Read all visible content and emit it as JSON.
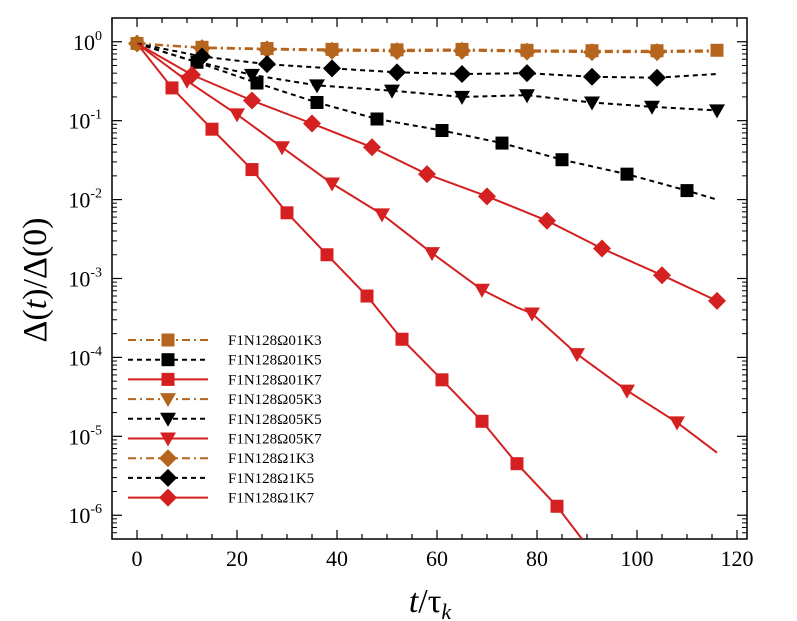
{
  "chart_data": {
    "type": "line",
    "yscale": "log",
    "xlabel": {
      "main": "t",
      "sep": "/",
      "tau": "τ",
      "sub": "k"
    },
    "ylabel": {
      "d1": "Δ(",
      "t": "t",
      "mid": ")/Δ(0)"
    },
    "xlim": [
      -5,
      122
    ],
    "ylim": [
      5e-07,
      2
    ],
    "xticks": [
      0,
      20,
      40,
      60,
      80,
      100,
      120
    ],
    "xtick_labels": [
      "0",
      "20",
      "40",
      "60",
      "80",
      "100",
      "120"
    ],
    "ytick_labels": [
      {
        "base": "10",
        "exp": "0"
      },
      {
        "base": "10",
        "exp": "-1"
      },
      {
        "base": "10",
        "exp": "-2"
      },
      {
        "base": "10",
        "exp": "-3"
      },
      {
        "base": "10",
        "exp": "-4"
      },
      {
        "base": "10",
        "exp": "-5"
      },
      {
        "base": "10",
        "exp": "-6"
      }
    ],
    "legend_position": "bottom-left",
    "colors": {
      "orange": "#b5651d",
      "black": "#000000",
      "red": "#d42020"
    },
    "series": [
      {
        "name": "F1N128Ω01K3",
        "color": "#b5651d",
        "dash": "dashdot",
        "marker": "square",
        "x": [
          0,
          13,
          26,
          39,
          52,
          65,
          78,
          91,
          104,
          116
        ],
        "y": [
          0.95,
          0.85,
          0.82,
          0.8,
          0.79,
          0.8,
          0.78,
          0.77,
          0.77,
          0.78
        ],
        "marker_x": [
          0,
          13,
          26,
          39,
          52,
          65,
          78,
          91,
          104,
          116
        ]
      },
      {
        "name": "F1N128Ω01K5",
        "color": "#000000",
        "dash": "dash",
        "marker": "square",
        "x": [
          0,
          12,
          24,
          36,
          48,
          61,
          73,
          85,
          98,
          110,
          116
        ],
        "y": [
          0.95,
          0.55,
          0.3,
          0.17,
          0.105,
          0.075,
          0.052,
          0.032,
          0.021,
          0.013,
          0.01
        ],
        "marker_x": [
          12,
          24,
          36,
          48,
          61,
          73,
          85,
          98,
          110
        ]
      },
      {
        "name": "F1N128Ω01K7",
        "color": "#d42020",
        "dash": "solid",
        "marker": "square",
        "x": [
          0,
          7,
          15,
          23,
          30,
          38,
          46,
          53,
          61,
          69,
          76,
          84,
          89
        ],
        "y": [
          0.95,
          0.26,
          0.078,
          0.024,
          0.0068,
          0.002,
          0.0006,
          0.00017,
          5.2e-05,
          1.55e-05,
          4.5e-06,
          1.3e-06,
          5e-07
        ],
        "marker_x": [
          7,
          15,
          23,
          30,
          38,
          46,
          53,
          61,
          69,
          76,
          84
        ]
      },
      {
        "name": "F1N128Ω05K3",
        "color": "#b5651d",
        "dash": "dashdot",
        "marker": "triangle-down",
        "x": [
          0,
          13,
          26,
          39,
          52,
          65,
          78,
          91,
          104,
          116
        ],
        "y": [
          0.95,
          0.84,
          0.8,
          0.79,
          0.77,
          0.78,
          0.76,
          0.75,
          0.75,
          0.76
        ],
        "marker_x": []
      },
      {
        "name": "F1N128Ω05K5",
        "color": "#000000",
        "dash": "dash",
        "marker": "triangle-down",
        "x": [
          0,
          10,
          23,
          36,
          51,
          65,
          78,
          91,
          103,
          116
        ],
        "y": [
          0.95,
          0.6,
          0.38,
          0.28,
          0.24,
          0.2,
          0.21,
          0.17,
          0.15,
          0.135
        ],
        "marker_x": [
          23,
          36,
          51,
          65,
          78,
          91,
          103,
          116
        ]
      },
      {
        "name": "F1N128Ω05K7",
        "color": "#d42020",
        "dash": "solid",
        "marker": "triangle-down",
        "x": [
          0,
          10,
          20,
          29,
          39,
          49,
          59,
          69,
          76,
          79,
          88,
          98,
          108,
          116
        ],
        "y": [
          0.95,
          0.32,
          0.12,
          0.046,
          0.016,
          0.0065,
          0.0021,
          0.00072,
          0.00043,
          0.00036,
          0.00011,
          3.8e-05,
          1.5e-05,
          6.2e-06
        ],
        "marker_x": [
          10,
          20,
          29,
          39,
          49,
          59,
          69,
          79,
          88,
          98,
          108
        ]
      },
      {
        "name": "F1N128Ω1K3",
        "color": "#b5651d",
        "dash": "dashdot",
        "marker": "diamond",
        "x": [
          0,
          13,
          26,
          39,
          52,
          65,
          78,
          91,
          104,
          116
        ],
        "y": [
          0.95,
          0.83,
          0.8,
          0.77,
          0.76,
          0.77,
          0.75,
          0.74,
          0.74,
          0.75
        ],
        "marker_x": [
          0,
          13,
          26,
          39,
          52,
          65,
          78,
          91,
          104
        ]
      },
      {
        "name": "F1N128Ω1K5",
        "color": "#000000",
        "dash": "dash",
        "marker": "diamond",
        "x": [
          0,
          13,
          26,
          39,
          52,
          65,
          78,
          91,
          104,
          116
        ],
        "y": [
          0.95,
          0.65,
          0.52,
          0.46,
          0.41,
          0.39,
          0.4,
          0.36,
          0.35,
          0.39
        ],
        "marker_x": [
          13,
          26,
          39,
          52,
          65,
          78,
          91,
          104
        ]
      },
      {
        "name": "F1N128Ω1K7",
        "color": "#d42020",
        "dash": "solid",
        "marker": "diamond",
        "x": [
          0,
          11,
          23,
          35,
          47,
          58,
          70,
          82,
          93,
          105,
          116
        ],
        "y": [
          0.95,
          0.38,
          0.18,
          0.092,
          0.046,
          0.021,
          0.011,
          0.0054,
          0.0024,
          0.0011,
          0.00052
        ],
        "marker_x": [
          11,
          23,
          35,
          47,
          58,
          70,
          82,
          93,
          105,
          116
        ]
      }
    ]
  }
}
